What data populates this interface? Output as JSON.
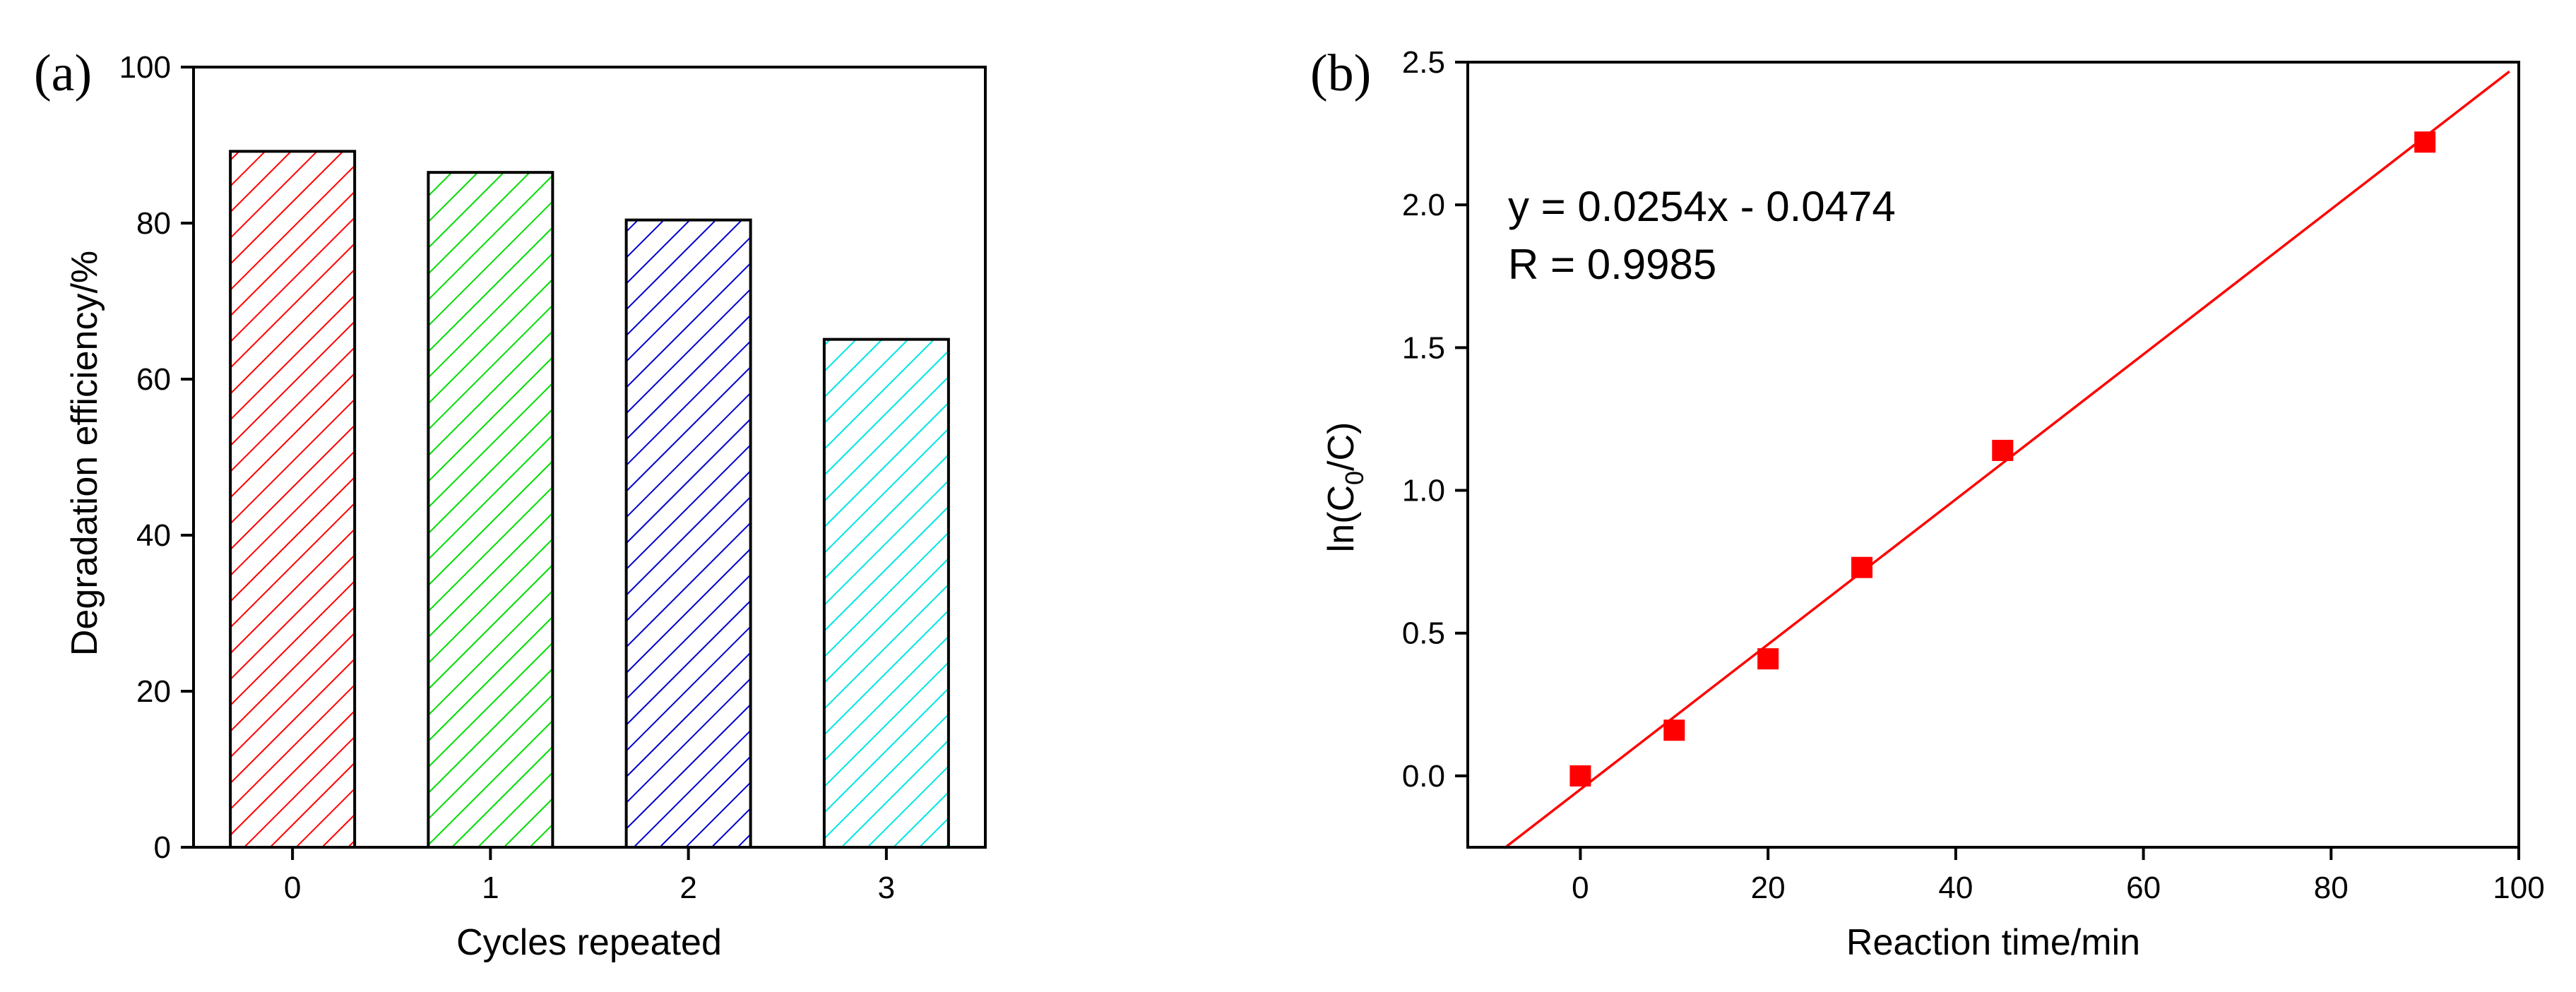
{
  "chart_data": [
    {
      "type": "bar",
      "panel_label": "(a)",
      "title": "",
      "xlabel": "Cycles repeated",
      "ylabel": "Degradation efficiency/%",
      "categories": [
        "0",
        "1",
        "2",
        "3"
      ],
      "values": [
        89.2,
        86.5,
        80.4,
        65.1
      ],
      "colors": [
        "#ff0000",
        "#00dd00",
        "#0000cc",
        "#00e5e5"
      ],
      "ylim": [
        0,
        100
      ],
      "yticks": [
        0,
        20,
        40,
        60,
        80,
        100
      ],
      "grid": false,
      "fill_pattern": "diagonal-hatch"
    },
    {
      "type": "scatter",
      "panel_label": "(b)",
      "title": "",
      "xlabel": "Reaction time/min",
      "ylabel_parts": {
        "prefix": "ln(C",
        "subscript": "0",
        "suffix": "/C)"
      },
      "x": [
        0,
        10,
        20,
        30,
        45,
        90
      ],
      "y": [
        0.0,
        0.16,
        0.41,
        0.73,
        1.14,
        2.22
      ],
      "marker_color": "#ff0000",
      "xlim": [
        -12,
        100
      ],
      "ylim": [
        -0.25,
        2.5
      ],
      "xticks": [
        0,
        20,
        40,
        60,
        80,
        100
      ],
      "yticks": [
        "0.0",
        "0.5",
        "1.0",
        "1.5",
        "2.0",
        "2.5"
      ],
      "fit": {
        "slope": 0.0254,
        "intercept": -0.0474,
        "color": "#ff0000",
        "x_range": [
          -8.1,
          99
        ]
      },
      "annotations": [
        "y = 0.0254x - 0.0474",
        "R = 0.9985"
      ],
      "grid": false
    }
  ]
}
